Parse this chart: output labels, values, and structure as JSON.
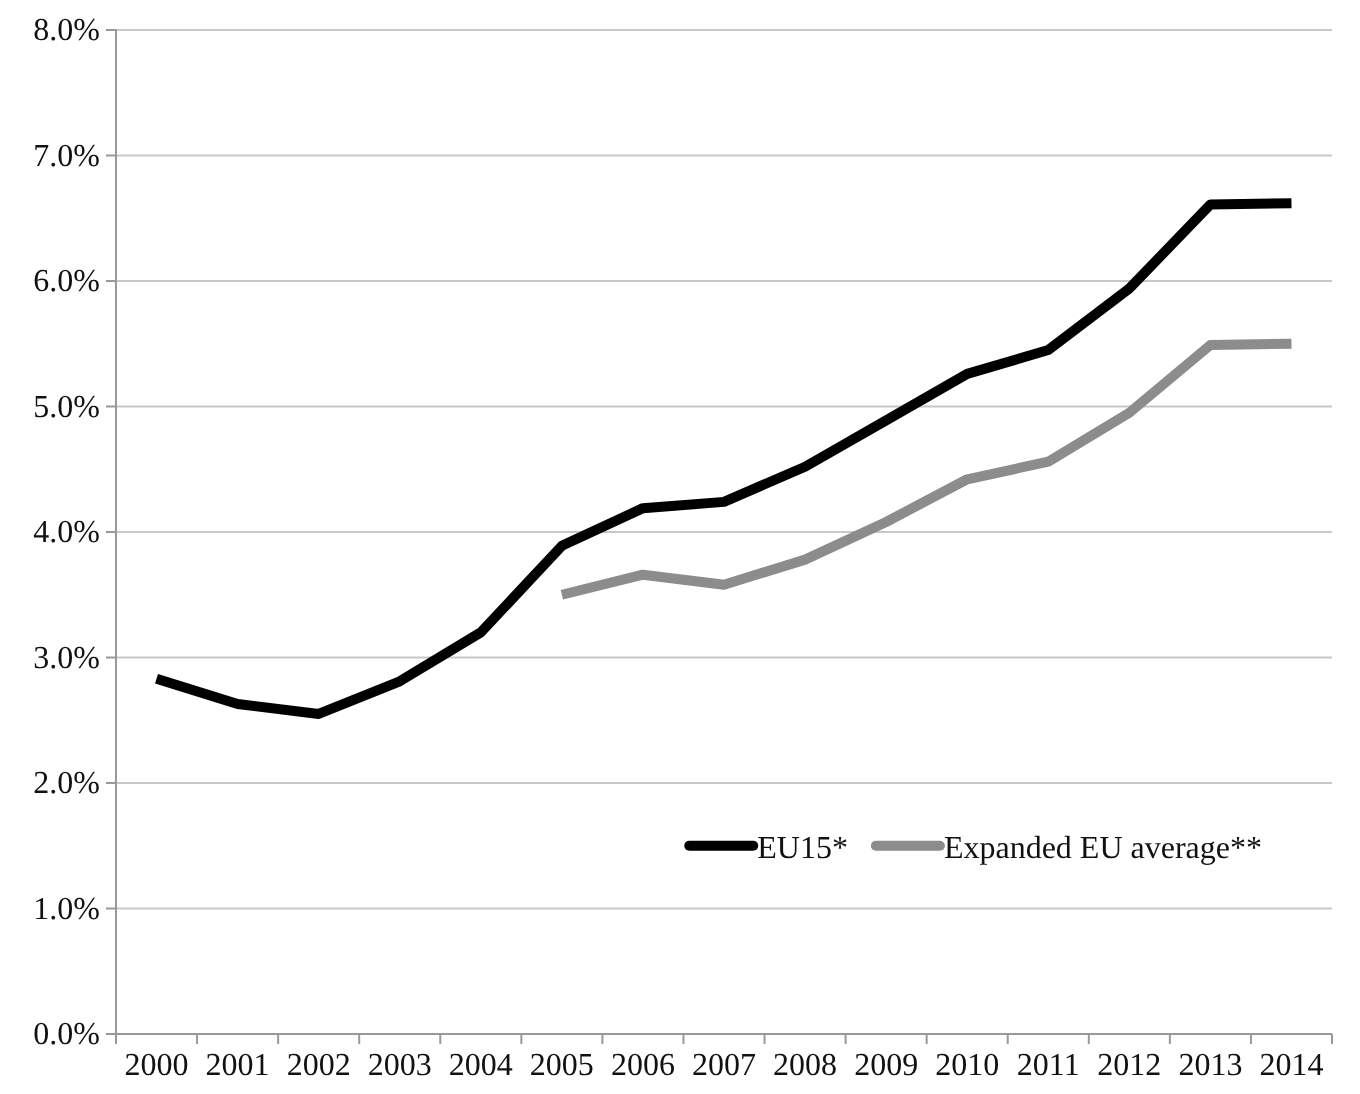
{
  "chart_data": {
    "type": "line",
    "categories": [
      "2000",
      "2001",
      "2002",
      "2003",
      "2004",
      "2005",
      "2006",
      "2007",
      "2008",
      "2009",
      "2010",
      "2011",
      "2012",
      "2013",
      "2014"
    ],
    "series": [
      {
        "name": "EU15*",
        "color": "#000000",
        "values": [
          2.83,
          2.63,
          2.55,
          2.81,
          3.2,
          3.89,
          4.19,
          4.24,
          4.52,
          4.89,
          5.26,
          5.45,
          5.94,
          6.61,
          6.62
        ]
      },
      {
        "name": "Expanded EU average**",
        "color": "#8c8c8c",
        "values": [
          null,
          null,
          null,
          null,
          null,
          3.5,
          3.66,
          3.58,
          3.78,
          4.08,
          4.42,
          4.56,
          4.95,
          5.49,
          5.5
        ]
      }
    ],
    "ylim": [
      0,
      8
    ],
    "yticks": [
      {
        "value": 0,
        "label": "0.0%"
      },
      {
        "value": 1,
        "label": "1.0%"
      },
      {
        "value": 2,
        "label": "2.0%"
      },
      {
        "value": 3,
        "label": "3.0%"
      },
      {
        "value": 4,
        "label": "4.0%"
      },
      {
        "value": 5,
        "label": "5.0%"
      },
      {
        "value": 6,
        "label": "6.0%"
      },
      {
        "value": 7,
        "label": "7.0%"
      },
      {
        "value": 8,
        "label": "8.0%"
      }
    ],
    "grid": "y",
    "legend": "bottom right",
    "marker": "none",
    "line_style": "solid"
  }
}
